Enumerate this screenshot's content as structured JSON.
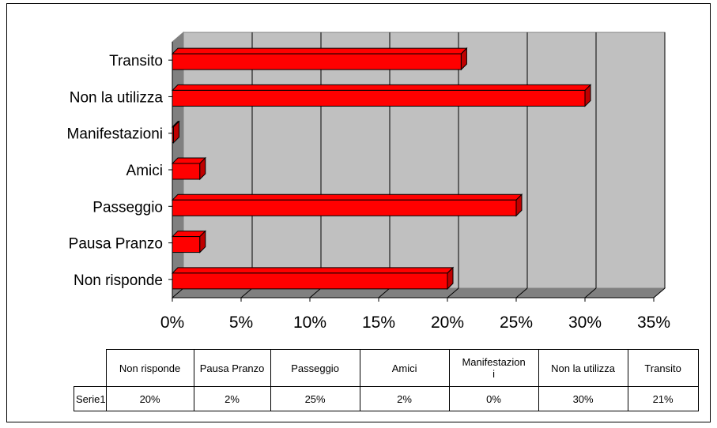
{
  "chart_data": {
    "type": "bar",
    "orientation": "horizontal",
    "categories": [
      "Non risponde",
      "Pausa Pranzo",
      "Passeggio",
      "Amici",
      "Manifestazioni",
      "Non la utilizza",
      "Transito"
    ],
    "series": [
      {
        "name": "Serie1",
        "values": [
          20,
          2,
          25,
          2,
          0,
          30,
          21
        ]
      }
    ],
    "xlim": [
      0,
      35
    ],
    "xticks": [
      "0%",
      "5%",
      "10%",
      "15%",
      "20%",
      "25%",
      "30%",
      "35%"
    ],
    "grid": true,
    "bar_color": "#ff0000",
    "plot_background": "#c0c0c0",
    "data_table": {
      "headers": [
        "Non risponde",
        "Pausa Pranzo",
        "Passeggio",
        "Amici",
        "Manifestazion\ni",
        "Non la utilizza",
        "Transito"
      ],
      "rows": [
        {
          "name": "Serie1",
          "cells": [
            "20%",
            "2%",
            "25%",
            "2%",
            "0%",
            "30%",
            "21%"
          ]
        }
      ]
    }
  }
}
